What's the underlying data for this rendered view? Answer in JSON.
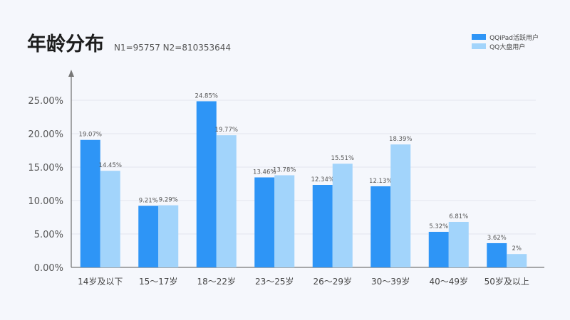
{
  "header": {
    "title": "年龄分布",
    "subtitle": "N1=95757  N2=810353644"
  },
  "legend": [
    {
      "name": "QQiPad活跃用户",
      "color": "#2e95f6"
    },
    {
      "name": "QQ大盘用户",
      "color": "#a2d4fb"
    }
  ],
  "chart_data": {
    "type": "bar",
    "categories": [
      "14岁及以下",
      "15～17岁",
      "18～22岁",
      "23～25岁",
      "26～29岁",
      "30～39岁",
      "40～49岁",
      "50岁及以上"
    ],
    "series": [
      {
        "name": "QQiPad活跃用户",
        "color": "#2e95f6",
        "values": [
          19.07,
          9.21,
          24.85,
          13.46,
          12.34,
          12.13,
          5.32,
          3.62
        ],
        "labels": [
          "19.07%",
          "9.21%",
          "24.85%",
          "13.46%",
          "12.34%",
          "12.13%",
          "5.32%",
          "3.62%"
        ]
      },
      {
        "name": "QQ大盘用户",
        "color": "#a2d4fb",
        "values": [
          14.45,
          9.29,
          19.77,
          13.78,
          15.51,
          18.39,
          6.81,
          2
        ],
        "labels": [
          "14.45%",
          "9.29%",
          "19.77%",
          "13.78%",
          "15.51%",
          "18.39%",
          "6.81%",
          "2%"
        ]
      }
    ],
    "ylim": [
      0,
      25
    ],
    "yticks": [
      0,
      5,
      10,
      15,
      20,
      25
    ],
    "ytick_labels": [
      "0.00%",
      "5.00%",
      "10.00%",
      "15.00%",
      "20.00%",
      "25.00%"
    ],
    "grid": true,
    "legend_position": "top-right"
  }
}
